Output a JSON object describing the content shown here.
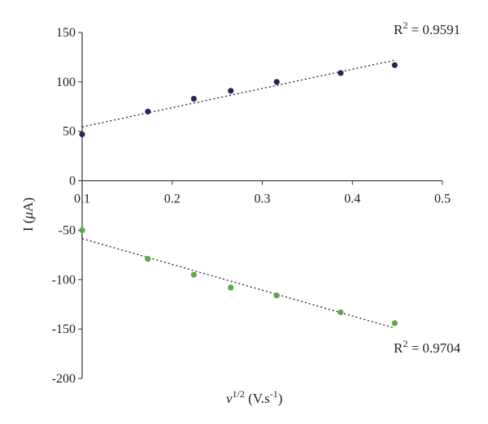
{
  "chart_data": {
    "type": "scatter",
    "xlabel": "v^1/2 (V.s^-1)",
    "xlabel_parts": {
      "symbol": "v",
      "exponent": "1/2",
      "unit_open": " (V.s",
      "unit_exponent": "-1",
      "unit_close": ")"
    },
    "ylabel": "I (μA)",
    "ylabel_parts": {
      "prefix": "I (",
      "mu": "μ",
      "suffix": "A)"
    },
    "xlim": [
      0.1,
      0.5
    ],
    "ylim": [
      -200,
      150
    ],
    "x_ticks": [
      0.1,
      0.2,
      0.3,
      0.4,
      0.5
    ],
    "x_tick_labels": [
      "0.1",
      "0.2",
      "0.3",
      "0.4",
      "0.5"
    ],
    "y_ticks": [
      150,
      100,
      50,
      0,
      -50,
      -100,
      -150,
      -200
    ],
    "y_tick_labels": [
      "150",
      "100",
      "50",
      "0",
      "-50",
      "-100",
      "-150",
      "-200"
    ],
    "grid": false,
    "series": [
      {
        "color": "#1f2a5c",
        "x": [
          0.1,
          0.173,
          0.224,
          0.265,
          0.316,
          0.387,
          0.447
        ],
        "y": [
          47,
          70,
          83,
          91,
          100,
          109,
          117
        ],
        "trendline": {
          "x": [
            0.1,
            0.447
          ],
          "y": [
            54.5,
            122
          ]
        },
        "r2_label": {
          "prefix": "R",
          "sup": "2",
          "value": " = 0.9591"
        }
      },
      {
        "color": "#5aa84a",
        "x": [
          0.1,
          0.173,
          0.224,
          0.265,
          0.316,
          0.387,
          0.447
        ],
        "y": [
          -50,
          -79,
          -95,
          -108,
          -116,
          -133,
          -144
        ],
        "trendline": {
          "x": [
            0.1,
            0.447
          ],
          "y": [
            -58.5,
            -149
          ]
        },
        "r2_label": {
          "prefix": "R",
          "sup": "2",
          "value": " = 0.9704"
        }
      }
    ]
  }
}
